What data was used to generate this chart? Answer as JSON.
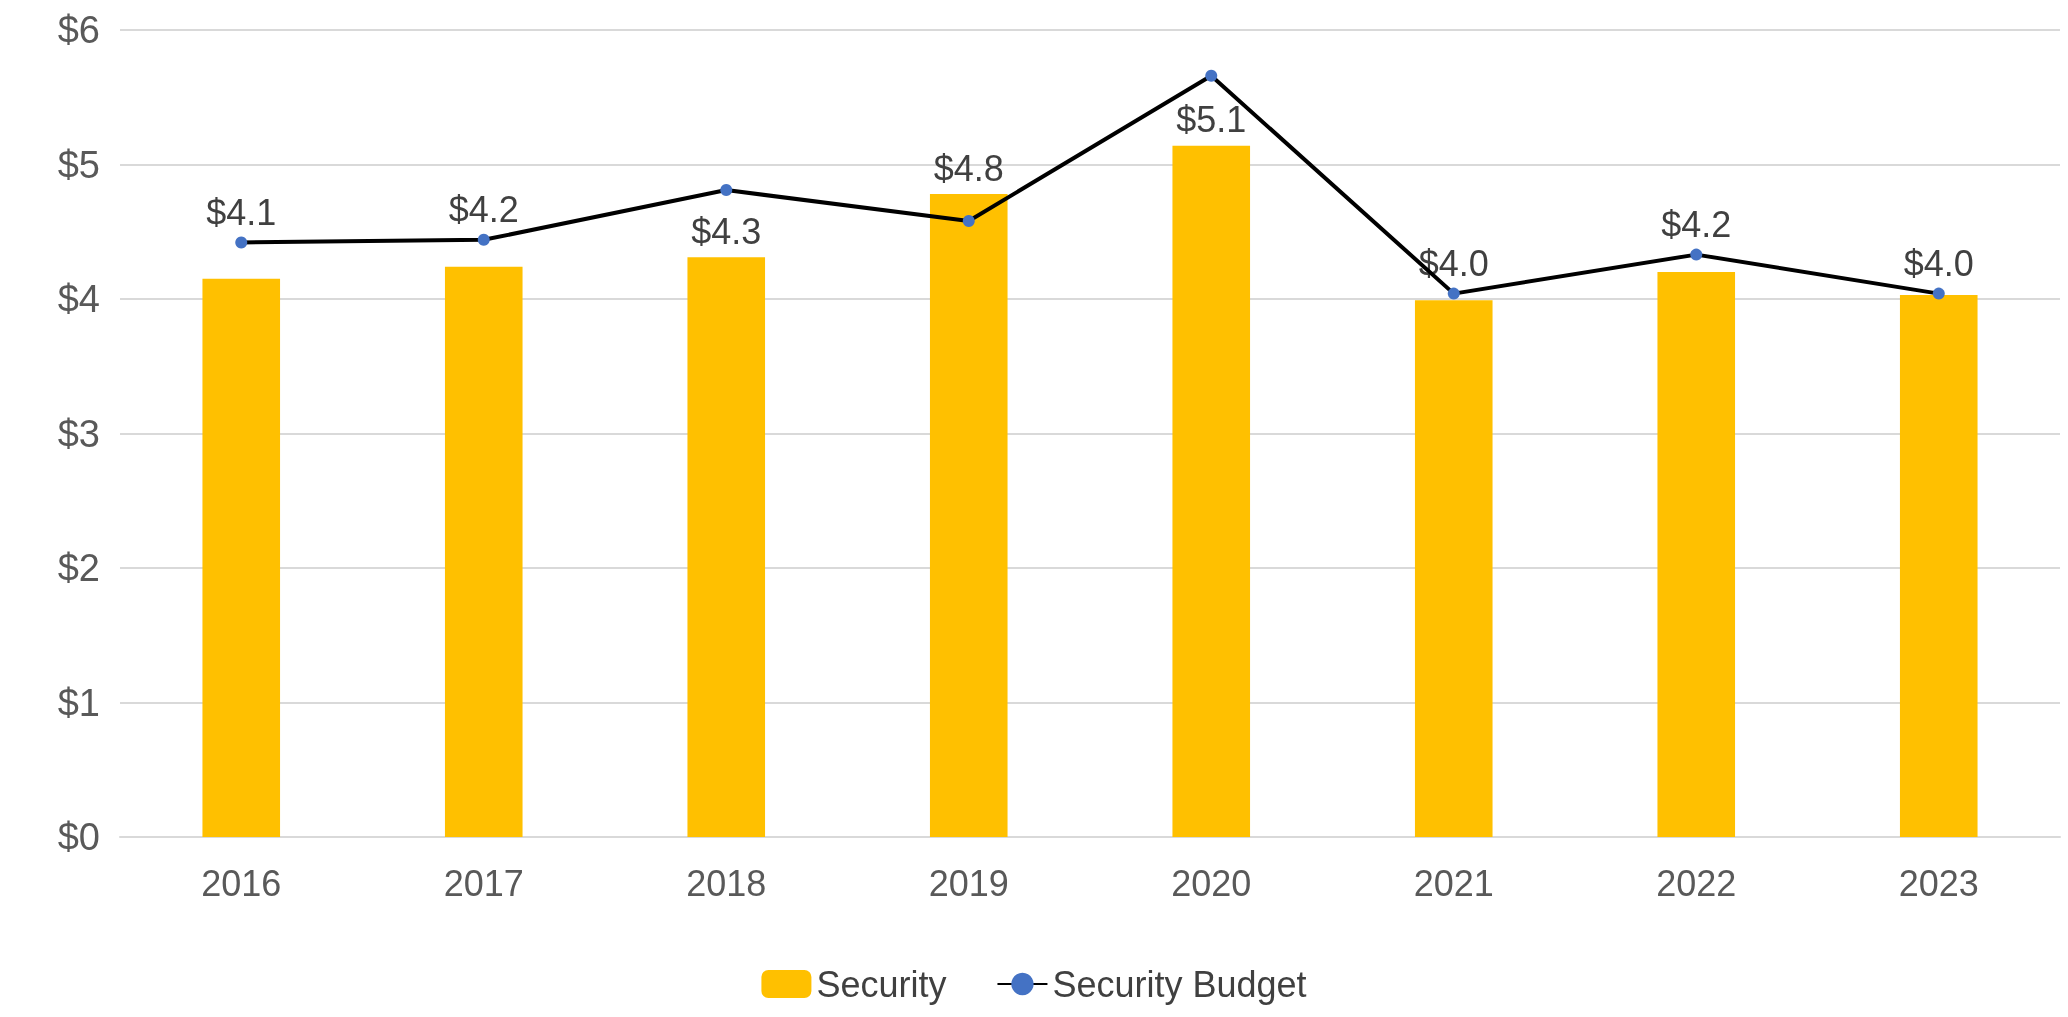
{
  "chart_data": {
    "type": "bar",
    "categories": [
      "2016",
      "2017",
      "2018",
      "2019",
      "2020",
      "2021",
      "2022",
      "2023"
    ],
    "series": [
      {
        "name": "Security",
        "color": "#ffc000",
        "values": [
          4.15,
          4.24,
          4.31,
          4.78,
          5.14,
          3.99,
          4.2,
          4.03
        ],
        "value_labels": [
          "$4.1",
          "$4.2",
          "$4.3",
          "$4.8",
          "$5.1",
          "$4.0",
          "$4.2",
          "$4.0"
        ]
      },
      {
        "name": "Security Budget",
        "type": "line",
        "color": "#000000",
        "colors": [
          "#4472c4",
          "#4472c4",
          "#4472c4",
          "#4472c4",
          "#4472c4",
          "#4472c4",
          "#4472c4",
          "#4472c4"
        ],
        "values": [
          4.42,
          4.44,
          4.81,
          4.58,
          5.66,
          4.04,
          4.33,
          4.04
        ]
      }
    ],
    "ylim": [
      0,
      6
    ],
    "yticks": [
      {
        "value": 0,
        "label": "$0"
      },
      {
        "value": 1,
        "label": "$1"
      },
      {
        "value": 2,
        "label": "$2"
      },
      {
        "value": 3,
        "label": "$3"
      },
      {
        "value": 4,
        "label": "$4"
      },
      {
        "value": 5,
        "label": "$5"
      },
      {
        "value": 6,
        "label": "$6"
      }
    ],
    "grid": "y",
    "legend": "bottom",
    "marker": "circle",
    "line_style": "solid"
  }
}
